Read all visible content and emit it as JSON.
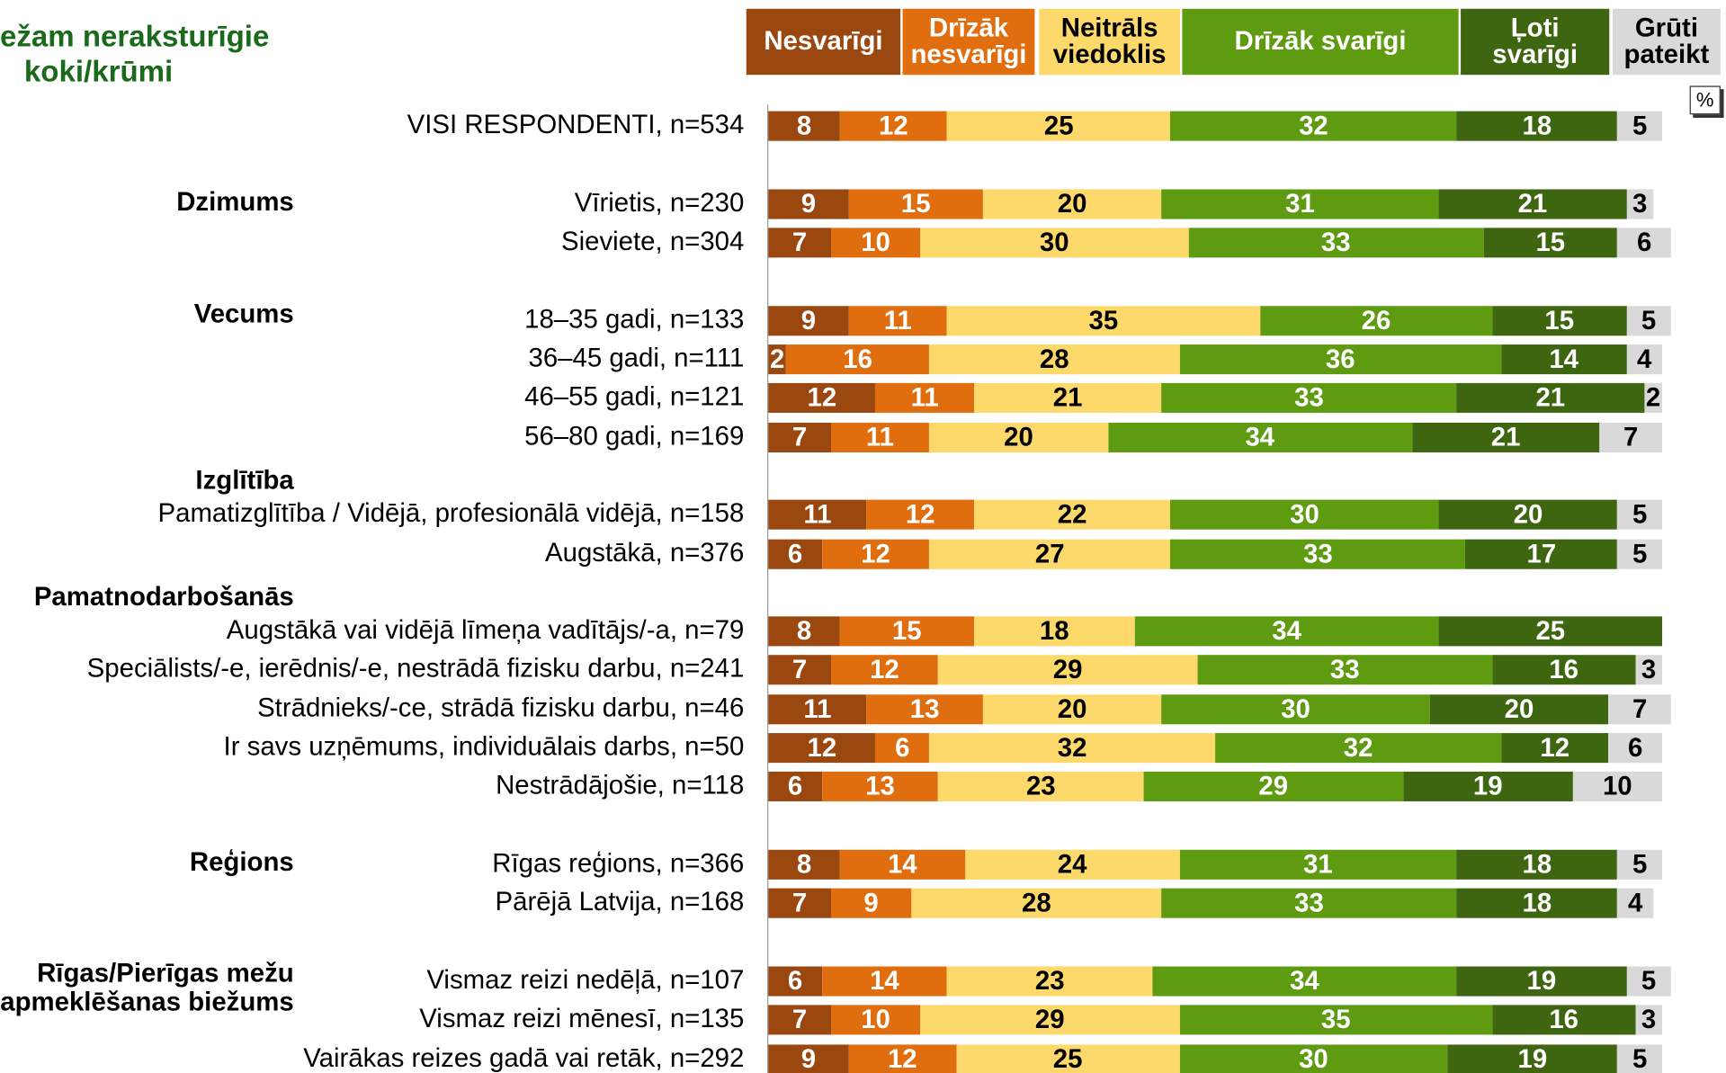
{
  "chart_data": {
    "type": "stacked_bar_horizontal",
    "title": [
      "ežam neraksturīgie",
      "koki/krūmi"
    ],
    "unit": "%",
    "xlim": [
      0,
      100
    ],
    "categories": [
      "VISI RESPONDENTI, n=534",
      "Vīrietis, n=230",
      "Sieviete, n=304",
      "18–35 gadi, n=133",
      "36–45 gadi, n=111",
      "46–55 gadi, n=121",
      "56–80 gadi, n=169",
      "Pamatizglītība / Vidējā, profesionālā vidējā, n=158",
      "Augstākā, n=376",
      "Augstākā vai vidējā līmeņa vadītājs/-a, n=79",
      "Speciālists/-e, ierēdnis/-e, nestrādā fizisku darbu, n=241",
      "Strādnieks/-ce, strādā fizisku darbu, n=46",
      "Ir savs uzņēmums, individuālais darbs, n=50",
      "Nestrādājošie, n=118",
      "Rīgas reģions, n=366",
      "Pārējā Latvija, n=168",
      "Vismaz reizi nedēļā, n=107",
      "Vismaz reizi mēnesī, n=135",
      "Vairākas reizes gadā vai retāk, n=292"
    ],
    "row_groups": [
      null,
      "Dzimums",
      null,
      "Vecums",
      null,
      null,
      null,
      "Izglītība",
      null,
      "Pamatnodarbošanās",
      null,
      null,
      null,
      null,
      "Reģions",
      null,
      "Rīgas/Pierīgas mežu apmeklēšanas biežums",
      null,
      null
    ],
    "series": [
      {
        "name": "Nesvarīgi",
        "color": "#9a4710",
        "values": [
          8,
          9,
          7,
          9,
          2,
          12,
          7,
          11,
          6,
          8,
          7,
          11,
          12,
          6,
          8,
          7,
          6,
          7,
          9
        ]
      },
      {
        "name": "Drīzāk nesvarīgi",
        "color": "#e06e0e",
        "values": [
          12,
          15,
          10,
          11,
          16,
          11,
          11,
          12,
          12,
          15,
          12,
          13,
          6,
          13,
          14,
          9,
          14,
          10,
          12
        ]
      },
      {
        "name": "Neitrāls viedoklis",
        "color": "#fdd86b",
        "values": [
          25,
          20,
          30,
          35,
          28,
          21,
          20,
          22,
          27,
          18,
          29,
          20,
          32,
          23,
          24,
          28,
          23,
          29,
          25
        ]
      },
      {
        "name": "Drīzāk svarīgi",
        "color": "#5f9b11",
        "values": [
          32,
          31,
          33,
          26,
          36,
          33,
          34,
          30,
          33,
          34,
          33,
          30,
          32,
          29,
          31,
          33,
          34,
          35,
          30
        ]
      },
      {
        "name": "Ļoti svarīgi",
        "color": "#3e650f",
        "values": [
          18,
          21,
          15,
          15,
          14,
          21,
          21,
          20,
          17,
          25,
          16,
          20,
          12,
          19,
          18,
          18,
          19,
          16,
          19
        ]
      },
      {
        "name": "Grūti pateikt",
        "color": "#d9d9d9",
        "values": [
          5,
          3,
          6,
          5,
          4,
          2,
          7,
          5,
          5,
          0,
          3,
          7,
          6,
          10,
          5,
          4,
          5,
          3,
          5
        ]
      }
    ]
  }
}
